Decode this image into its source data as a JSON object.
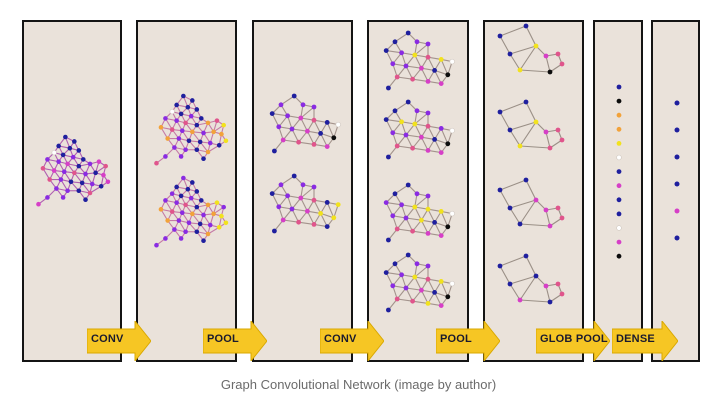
{
  "arrows": {
    "conv_1": "CONV",
    "pool_1": "POOL",
    "conv_2": "CONV",
    "pool_2": "POOL",
    "glob_pool": "GLOB POOL",
    "dense": "DENSE"
  },
  "caption": "Graph Convolutional Network (image by author)",
  "colors": {
    "panel": "#eae2da",
    "arrow": "#f6c624",
    "edge": "#9a8f86",
    "node_blue": "#1f1f9e",
    "node_purple": "#8a2be2",
    "node_magenta": "#d63fc7",
    "node_pink": "#e0558c",
    "node_yellow": "#f2e21d",
    "node_orange": "#f2a23a",
    "node_black": "#0c0c0c",
    "node_white": "#ffffff"
  }
}
